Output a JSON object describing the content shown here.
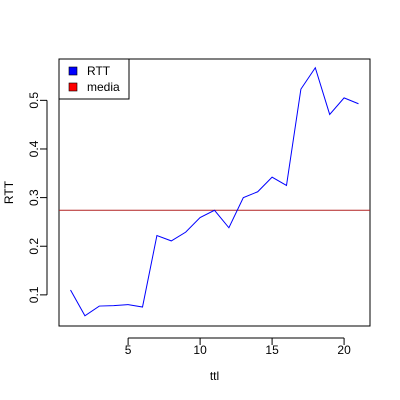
{
  "chart_data": {
    "type": "line",
    "title": "",
    "xlabel": "ttl",
    "ylabel": "RTT",
    "x": [
      1,
      2,
      3,
      4,
      5,
      6,
      7,
      8,
      9,
      10,
      11,
      12,
      13,
      14,
      15,
      16,
      17,
      18,
      19,
      20,
      21
    ],
    "xlim": [
      0.2,
      21.8
    ],
    "ylim": [
      0.036,
      0.585
    ],
    "xticks": [
      5,
      10,
      15,
      20
    ],
    "yticks": [
      0.1,
      0.2,
      0.3,
      0.4,
      0.5
    ],
    "xtick_labels": [
      "5",
      "10",
      "15",
      "20"
    ],
    "ytick_labels": [
      "0.1",
      "0.2",
      "0.3",
      "0.4",
      "0.5"
    ],
    "series": [
      {
        "name": "RTT",
        "color": "#0000ff",
        "values": [
          0.11,
          0.057,
          0.077,
          0.078,
          0.08,
          0.075,
          0.222,
          0.211,
          0.229,
          0.259,
          0.274,
          0.238,
          0.3,
          0.312,
          0.342,
          0.325,
          0.523,
          0.567,
          0.471,
          0.505,
          0.493
        ]
      }
    ],
    "hlines": [
      {
        "name": "media",
        "color": "#b22222",
        "value": 0.274
      }
    ],
    "legend": {
      "position": "top-left",
      "entries": [
        {
          "label": "RTT",
          "color": "#0000ff"
        },
        {
          "label": "media",
          "color": "#ff0000"
        }
      ]
    },
    "grid": false
  }
}
